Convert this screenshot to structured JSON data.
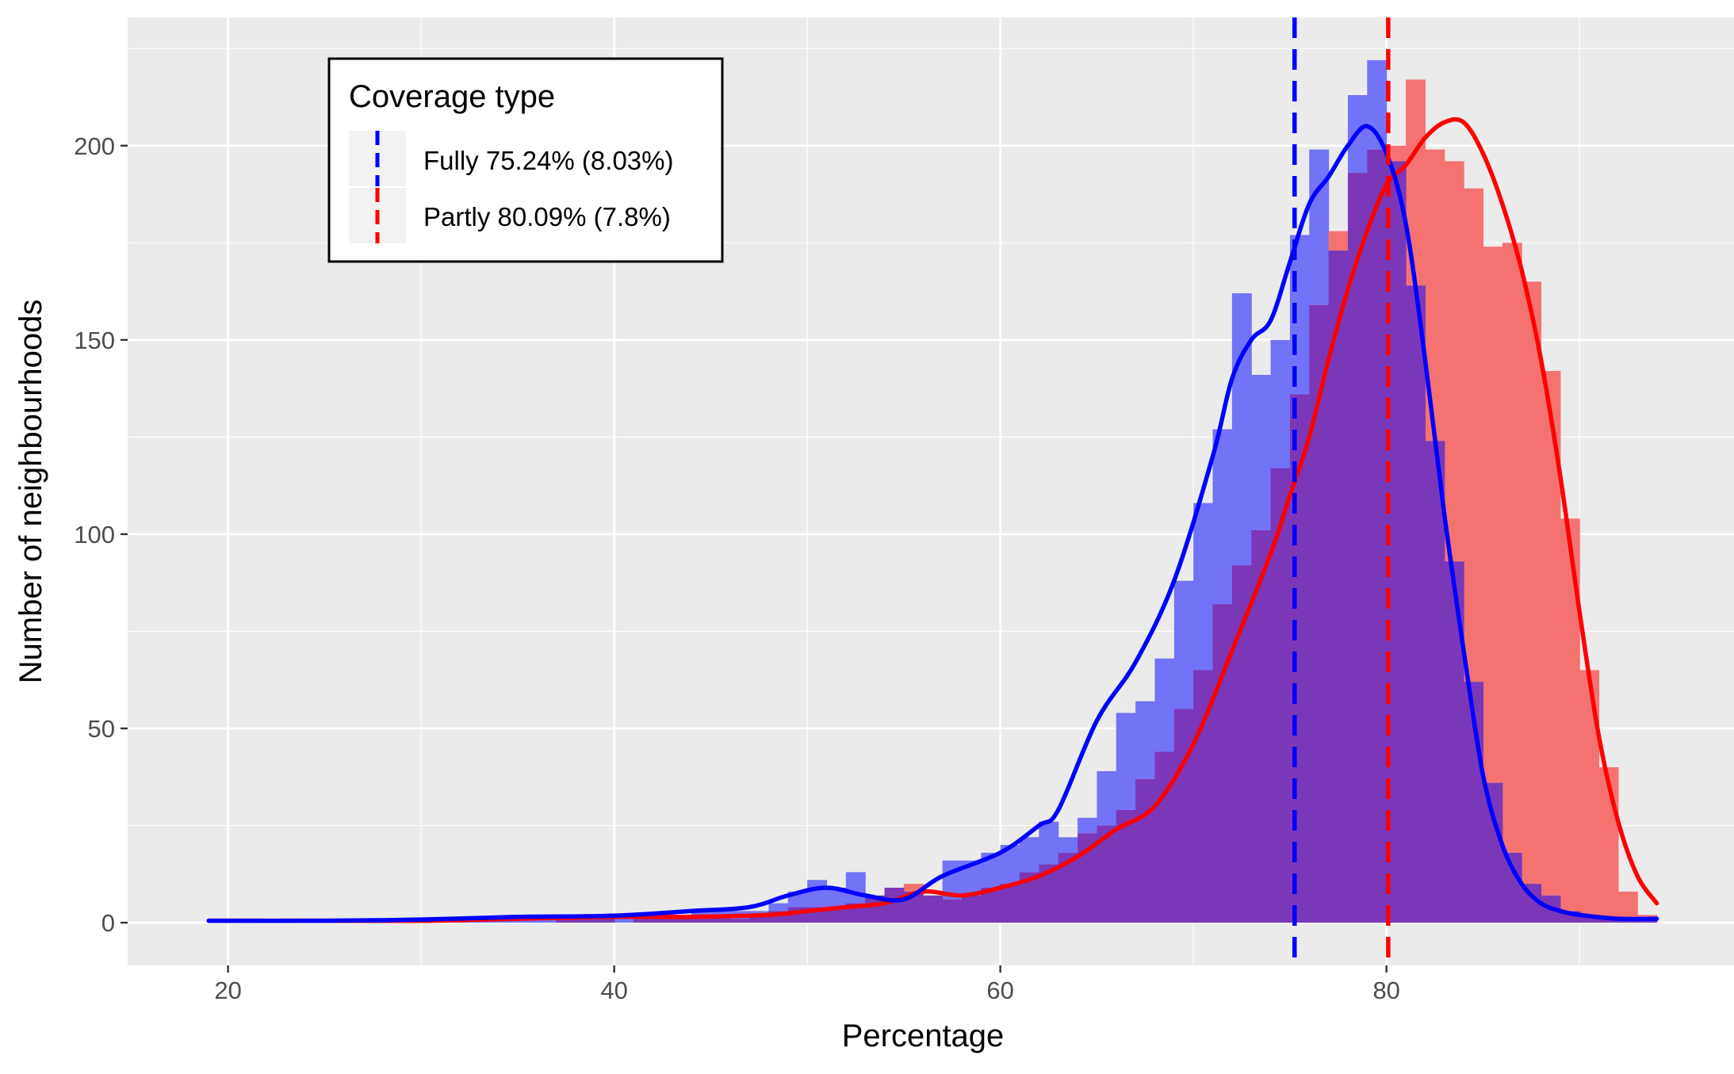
{
  "chart_data": {
    "type": "histogram",
    "title": "",
    "xlabel": "Percentage",
    "ylabel": "Number of neighbourhoods",
    "xlim": [
      14.8,
      98
    ],
    "ylim": [
      -11,
      233
    ],
    "x_ticks": [
      20,
      40,
      60,
      80
    ],
    "y_ticks": [
      0,
      50,
      100,
      150,
      200
    ],
    "x_tick_labels": [
      "20",
      "40",
      "60",
      "80"
    ],
    "y_tick_labels": [
      "0",
      "50",
      "100",
      "150",
      "200"
    ],
    "grid": true,
    "bin_width": 1,
    "legend": {
      "title": "Coverage type",
      "position": "top-left",
      "entries": [
        {
          "label": "Fully 75.24% (8.03%)",
          "color": "#0000ff",
          "mean": 75.24,
          "sd": 8.03
        },
        {
          "label": "Partly 80.09% (7.8%)",
          "color": "#ff0000",
          "mean": 80.09,
          "sd": 7.8
        }
      ]
    },
    "colors": {
      "fully_fill": "#7373f7",
      "partly_fill": "#f47371",
      "overlap_fill": "#7a38b8",
      "fully_line": "#0000ff",
      "partly_line": "#ff0000",
      "panel_bg": "#ebebeb"
    },
    "series": [
      {
        "name": "Fully",
        "bin_start": 19,
        "values": [
          1,
          0,
          0,
          1,
          0,
          0,
          0,
          0,
          0,
          0,
          0,
          0,
          1,
          1,
          1,
          1,
          1,
          1,
          1,
          1,
          2,
          2,
          2,
          2,
          2,
          3,
          3,
          3,
          3,
          5,
          8,
          11,
          9,
          13,
          7,
          9,
          8,
          7,
          16,
          16,
          18,
          20,
          22,
          26,
          22,
          27,
          39,
          54,
          57,
          68,
          88,
          108,
          127,
          162,
          141,
          150,
          177,
          199,
          173,
          213,
          222,
          196,
          164,
          124,
          93,
          62,
          36,
          18,
          10,
          7,
          3,
          2,
          1,
          1,
          1
        ],
        "vline": 75.24
      },
      {
        "name": "Partly",
        "bin_start": 19,
        "values": [
          0,
          0,
          0,
          1,
          0,
          0,
          0,
          0,
          0,
          0,
          0,
          0,
          0,
          0,
          0,
          0,
          0,
          0,
          1,
          1,
          2,
          0,
          1,
          1,
          1,
          2,
          2,
          1,
          2,
          3,
          4,
          4,
          4,
          5,
          7,
          9,
          10,
          7,
          6,
          7,
          9,
          10,
          13,
          15,
          18,
          23,
          25,
          29,
          37,
          44,
          55,
          65,
          82,
          92,
          101,
          117,
          136,
          159,
          178,
          193,
          199,
          200,
          217,
          199,
          196,
          189,
          174,
          175,
          165,
          142,
          104,
          65,
          40,
          8,
          2
        ],
        "vline": 80.09
      }
    ],
    "density_curves": [
      {
        "name": "Fully",
        "x": [
          19,
          25,
          30,
          35,
          40,
          44,
          47,
          49,
          51,
          53,
          55,
          57,
          60,
          62,
          63,
          65,
          67,
          69,
          71,
          72,
          73,
          74,
          75,
          76,
          77,
          78,
          79,
          80,
          81,
          82,
          83,
          84,
          85,
          86,
          87,
          88,
          89,
          90,
          92,
          94
        ],
        "y": [
          0.5,
          0.5,
          0.8,
          1.5,
          1.8,
          3,
          4,
          7,
          9,
          7,
          6,
          12,
          18,
          25,
          29,
          52,
          67,
          88,
          120,
          140,
          150,
          155,
          170,
          185,
          192,
          200,
          205,
          198,
          180,
          145,
          105,
          70,
          38,
          20,
          10,
          5,
          3,
          2,
          1,
          1
        ]
      },
      {
        "name": "Partly",
        "x": [
          19,
          25,
          30,
          35,
          40,
          44,
          48,
          50,
          52,
          54,
          56,
          58,
          60,
          62,
          64,
          66,
          68,
          70,
          72,
          74,
          75,
          76,
          77,
          78,
          79,
          80,
          81,
          82,
          83,
          84,
          85,
          86,
          87,
          88,
          89,
          90,
          91,
          92,
          93,
          94
        ],
        "y": [
          0.5,
          0.5,
          0.5,
          1,
          1.5,
          1.5,
          2,
          3,
          4,
          5,
          8,
          7,
          9,
          12,
          17,
          24,
          30,
          46,
          70,
          95,
          110,
          125,
          145,
          163,
          178,
          190,
          195,
          202,
          206,
          206,
          198,
          185,
          168,
          145,
          115,
          80,
          48,
          26,
          12,
          5
        ]
      }
    ]
  }
}
